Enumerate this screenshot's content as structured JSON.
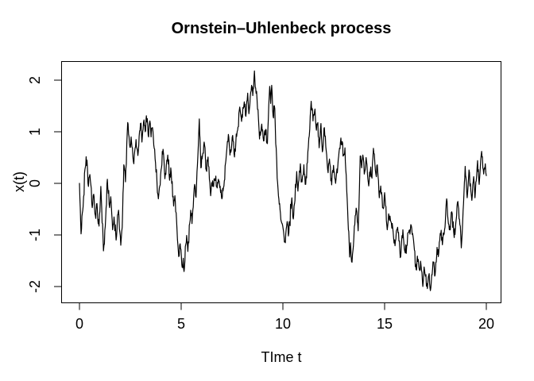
{
  "figure": {
    "background": "#ffffff",
    "foreground": "#000000"
  },
  "chart_data": {
    "type": "line",
    "title": "Ornstein–Uhlenbeck process",
    "xlabel": "TIme t",
    "ylabel": "x(t)",
    "xlim": [
      0,
      20
    ],
    "ylim": [
      -2.2,
      2.3
    ],
    "grid": false,
    "legend": null,
    "x_ticks": [
      0,
      5,
      10,
      15,
      20
    ],
    "x_tick_labels": [
      "0",
      "5",
      "10",
      "15",
      "20"
    ],
    "y_ticks": [
      -2,
      -1,
      0,
      1,
      2
    ],
    "y_tick_labels": [
      "-2",
      "-1",
      "0",
      "1",
      "2"
    ],
    "line_color": "#000000",
    "render_hints": {
      "noise_amplitude": 0.13,
      "noise_step": 0.022,
      "seed": 42
    },
    "series": [
      {
        "name": "x(t)",
        "points": [
          [
            0.0,
            0.0
          ],
          [
            0.08,
            -0.98
          ],
          [
            0.18,
            -0.45
          ],
          [
            0.27,
            0.27
          ],
          [
            0.37,
            0.45
          ],
          [
            0.44,
            -0.06
          ],
          [
            0.51,
            0.17
          ],
          [
            0.63,
            -0.47
          ],
          [
            0.7,
            -0.21
          ],
          [
            0.8,
            -0.68
          ],
          [
            0.86,
            -0.39
          ],
          [
            0.96,
            -0.83
          ],
          [
            1.05,
            -0.06
          ],
          [
            1.18,
            -1.31
          ],
          [
            1.27,
            -0.83
          ],
          [
            1.37,
            0.08
          ],
          [
            1.48,
            -0.47
          ],
          [
            1.54,
            -0.26
          ],
          [
            1.63,
            -0.9
          ],
          [
            1.7,
            -0.65
          ],
          [
            1.8,
            -1.1
          ],
          [
            1.92,
            -0.52
          ],
          [
            2.03,
            -1.2
          ],
          [
            2.1,
            -0.85
          ],
          [
            2.18,
            0.36
          ],
          [
            2.26,
            0.03
          ],
          [
            2.37,
            1.18
          ],
          [
            2.48,
            0.7
          ],
          [
            2.54,
            0.9
          ],
          [
            2.67,
            0.38
          ],
          [
            2.78,
            0.85
          ],
          [
            2.87,
            0.54
          ],
          [
            3.0,
            1.16
          ],
          [
            3.07,
            0.8
          ],
          [
            3.17,
            1.23
          ],
          [
            3.23,
            1.0
          ],
          [
            3.29,
            1.31
          ],
          [
            3.4,
            0.9
          ],
          [
            3.46,
            1.21
          ],
          [
            3.52,
            0.9
          ],
          [
            3.59,
            1.08
          ],
          [
            3.74,
            0.4
          ],
          [
            3.88,
            -0.3
          ],
          [
            3.95,
            -0.05
          ],
          [
            4.03,
            0.3
          ],
          [
            4.11,
            0.66
          ],
          [
            4.2,
            0.09
          ],
          [
            4.34,
            0.55
          ],
          [
            4.43,
            0.06
          ],
          [
            4.49,
            0.3
          ],
          [
            4.63,
            -0.44
          ],
          [
            4.69,
            -0.24
          ],
          [
            4.88,
            -1.42
          ],
          [
            4.95,
            -1.17
          ],
          [
            5.05,
            -1.63
          ],
          [
            5.1,
            -1.45
          ],
          [
            5.14,
            -1.71
          ],
          [
            5.27,
            -1.01
          ],
          [
            5.33,
            -1.32
          ],
          [
            5.47,
            -0.52
          ],
          [
            5.53,
            -0.78
          ],
          [
            5.66,
            -0.02
          ],
          [
            5.73,
            -0.27
          ],
          [
            5.89,
            1.25
          ],
          [
            5.97,
            0.3
          ],
          [
            6.05,
            0.55
          ],
          [
            6.13,
            0.8
          ],
          [
            6.23,
            0.26
          ],
          [
            6.32,
            0.51
          ],
          [
            6.45,
            -0.24
          ],
          [
            6.52,
            -0.05
          ],
          [
            6.64,
            0.09
          ],
          [
            6.77,
            -0.09
          ],
          [
            6.85,
            0.05
          ],
          [
            7.0,
            -0.3
          ],
          [
            7.1,
            -0.05
          ],
          [
            7.2,
            0.45
          ],
          [
            7.32,
            0.95
          ],
          [
            7.4,
            0.55
          ],
          [
            7.53,
            0.93
          ],
          [
            7.62,
            0.51
          ],
          [
            7.75,
            1.0
          ],
          [
            7.88,
            1.48
          ],
          [
            7.97,
            1.2
          ],
          [
            8.1,
            1.58
          ],
          [
            8.18,
            1.3
          ],
          [
            8.27,
            1.75
          ],
          [
            8.33,
            1.35
          ],
          [
            8.46,
            1.9
          ],
          [
            8.52,
            1.7
          ],
          [
            8.6,
            2.18
          ],
          [
            8.66,
            1.85
          ],
          [
            8.73,
            1.62
          ],
          [
            8.85,
            0.86
          ],
          [
            8.96,
            1.15
          ],
          [
            9.05,
            0.82
          ],
          [
            9.11,
            1.02
          ],
          [
            9.24,
            0.77
          ],
          [
            9.35,
            1.88
          ],
          [
            9.4,
            1.55
          ],
          [
            9.45,
            1.9
          ],
          [
            9.52,
            1.3
          ],
          [
            9.6,
            1.45
          ],
          [
            9.72,
            0.1
          ],
          [
            9.8,
            -0.3
          ],
          [
            9.9,
            -0.7
          ],
          [
            10.12,
            -1.15
          ],
          [
            10.21,
            -0.74
          ],
          [
            10.27,
            -1.02
          ],
          [
            10.44,
            -0.28
          ],
          [
            10.51,
            -0.69
          ],
          [
            10.68,
            0.23
          ],
          [
            10.74,
            -0.15
          ],
          [
            10.86,
            0.38
          ],
          [
            10.94,
            0.03
          ],
          [
            11.03,
            0.36
          ],
          [
            11.12,
            -0.02
          ],
          [
            11.25,
            0.7
          ],
          [
            11.39,
            1.59
          ],
          [
            11.48,
            1.21
          ],
          [
            11.58,
            1.44
          ],
          [
            11.65,
            1.03
          ],
          [
            11.72,
            1.18
          ],
          [
            11.78,
            0.69
          ],
          [
            11.87,
            1.16
          ],
          [
            11.94,
            0.61
          ],
          [
            12.04,
            1.08
          ],
          [
            12.2,
            0.27
          ],
          [
            12.29,
            0.47
          ],
          [
            12.4,
            -0.03
          ],
          [
            12.49,
            0.35
          ],
          [
            12.59,
            0.0
          ],
          [
            12.72,
            0.45
          ],
          [
            12.85,
            0.88
          ],
          [
            12.98,
            0.54
          ],
          [
            13.05,
            0.69
          ],
          [
            13.18,
            -0.49
          ],
          [
            13.28,
            -1.43
          ],
          [
            13.33,
            -1.15
          ],
          [
            13.4,
            -1.53
          ],
          [
            13.6,
            -0.48
          ],
          [
            13.7,
            -0.92
          ],
          [
            13.8,
            0.53
          ],
          [
            13.87,
            0.3
          ],
          [
            13.93,
            0.55
          ],
          [
            14.0,
            0.18
          ],
          [
            14.09,
            0.5
          ],
          [
            14.22,
            -0.05
          ],
          [
            14.3,
            0.25
          ],
          [
            14.38,
            0.1
          ],
          [
            14.45,
            0.68
          ],
          [
            14.57,
            0.18
          ],
          [
            14.64,
            0.36
          ],
          [
            14.74,
            -0.28
          ],
          [
            14.81,
            -0.05
          ],
          [
            14.94,
            -0.49
          ],
          [
            15.0,
            -0.18
          ],
          [
            15.13,
            -0.9
          ],
          [
            15.2,
            -0.59
          ],
          [
            15.31,
            -0.74
          ],
          [
            15.42,
            -0.95
          ],
          [
            15.51,
            -1.21
          ],
          [
            15.64,
            -0.85
          ],
          [
            15.77,
            -1.44
          ],
          [
            15.9,
            -0.9
          ],
          [
            15.99,
            -1.31
          ],
          [
            16.11,
            -1.2
          ],
          [
            16.16,
            -0.95
          ],
          [
            16.29,
            -0.8
          ],
          [
            16.42,
            -1.1
          ],
          [
            16.55,
            -1.67
          ],
          [
            16.61,
            -1.41
          ],
          [
            16.73,
            -1.69
          ],
          [
            16.77,
            -1.51
          ],
          [
            16.88,
            -2.0
          ],
          [
            16.94,
            -1.62
          ],
          [
            17.1,
            -2.04
          ],
          [
            17.17,
            -1.78
          ],
          [
            17.25,
            -2.08
          ],
          [
            17.38,
            -1.52
          ],
          [
            17.48,
            -1.78
          ],
          [
            17.58,
            -1.24
          ],
          [
            17.64,
            -1.42
          ],
          [
            17.78,
            -0.91
          ],
          [
            17.84,
            -1.19
          ],
          [
            17.97,
            -0.85
          ],
          [
            18.05,
            -0.3
          ],
          [
            18.18,
            -0.9
          ],
          [
            18.3,
            -0.55
          ],
          [
            18.42,
            -1.05
          ],
          [
            18.52,
            -0.7
          ],
          [
            18.6,
            -0.35
          ],
          [
            18.7,
            -0.8
          ],
          [
            18.77,
            -1.25
          ],
          [
            18.88,
            -0.4
          ],
          [
            18.96,
            0.33
          ],
          [
            19.06,
            -0.28
          ],
          [
            19.15,
            0.26
          ],
          [
            19.29,
            -0.33
          ],
          [
            19.38,
            0.13
          ],
          [
            19.44,
            -0.28
          ],
          [
            19.57,
            0.44
          ],
          [
            19.65,
            -0.02
          ],
          [
            19.77,
            0.62
          ],
          [
            19.87,
            0.18
          ],
          [
            19.95,
            0.38
          ],
          [
            20.0,
            0.15
          ]
        ]
      }
    ]
  }
}
